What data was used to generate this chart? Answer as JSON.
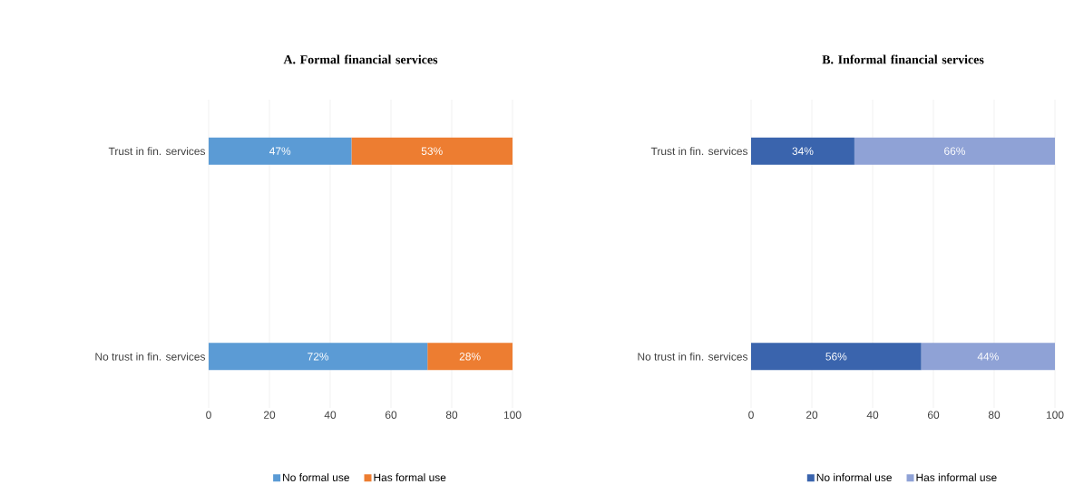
{
  "chart_data": [
    {
      "type": "bar",
      "orientation": "horizontal",
      "stacked": true,
      "title": "A. Formal financial services",
      "categories": [
        "Trust in fin. services",
        "No trust in fin. services"
      ],
      "xlim": [
        0,
        100
      ],
      "xticks": [
        0,
        20,
        40,
        60,
        80,
        100
      ],
      "grid": "x",
      "legend": "bottom",
      "series": [
        {
          "name": "No formal use",
          "color": "#5b9bd5",
          "values": [
            47,
            72
          ],
          "value_labels": [
            "47%",
            "72%"
          ]
        },
        {
          "name": "Has formal use",
          "color": "#ed7d31",
          "values": [
            53,
            28
          ],
          "value_labels": [
            "53%",
            "28%"
          ]
        }
      ]
    },
    {
      "type": "bar",
      "orientation": "horizontal",
      "stacked": true,
      "title": "B. Informal financial services",
      "categories": [
        "Trust in fin. services",
        "No trust in fin. services"
      ],
      "xlim": [
        0,
        100
      ],
      "xticks": [
        0,
        20,
        40,
        60,
        80,
        100
      ],
      "grid": "x",
      "legend": "bottom",
      "series": [
        {
          "name": "No informal use",
          "color": "#3a64ad",
          "values": [
            34,
            56
          ],
          "value_labels": [
            "34%",
            "56%"
          ]
        },
        {
          "name": "Has informal use",
          "color": "#8fa2d6",
          "values": [
            66,
            44
          ],
          "value_labels": [
            "66%",
            "44%"
          ]
        }
      ]
    }
  ]
}
